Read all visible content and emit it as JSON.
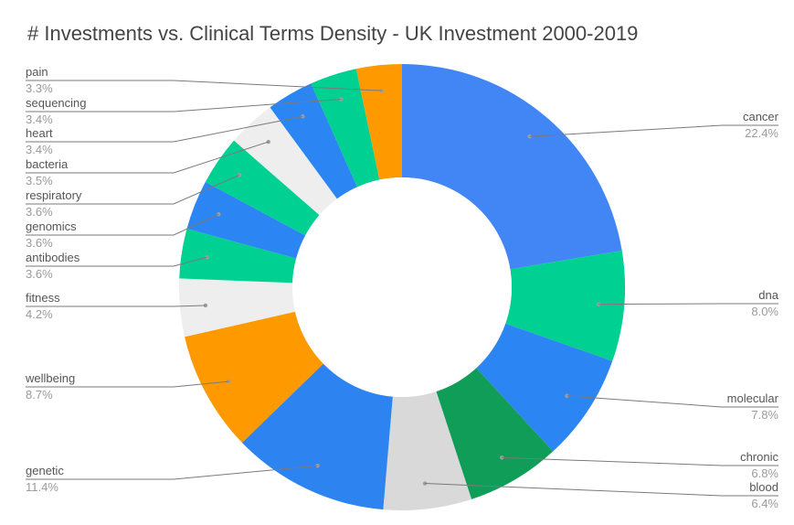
{
  "chart_data": {
    "type": "pie",
    "title": "# Investments vs. Clinical Terms Density - UK Investment 2000-2019",
    "donut": true,
    "start_at": "top",
    "direction": "clockwise",
    "legend": "labeled",
    "slices": [
      {
        "label": "cancer",
        "pct_label": "22.4%",
        "value": 22.4,
        "color": "#4285F4"
      },
      {
        "label": "dna",
        "pct_label": "8.0%",
        "value": 8.0,
        "color": "#00D092"
      },
      {
        "label": "molecular",
        "pct_label": "7.8%",
        "value": 7.8,
        "color": "#2B85F2"
      },
      {
        "label": "chronic",
        "pct_label": "6.8%",
        "value": 6.8,
        "color": "#0F9D58"
      },
      {
        "label": "blood",
        "pct_label": "6.4%",
        "value": 6.4,
        "color": "#D9D9D9"
      },
      {
        "label": "genetic",
        "pct_label": "11.4%",
        "value": 11.4,
        "color": "#2D84F0"
      },
      {
        "label": "wellbeing",
        "pct_label": "8.7%",
        "value": 8.7,
        "color": "#FF9900"
      },
      {
        "label": "fitness",
        "pct_label": "4.2%",
        "value": 4.2,
        "color": "#EEEEEE"
      },
      {
        "label": "antibodies",
        "pct_label": "3.6%",
        "value": 3.6,
        "color": "#00D092"
      },
      {
        "label": "genomics",
        "pct_label": "3.6%",
        "value": 3.6,
        "color": "#2B85F2"
      },
      {
        "label": "respiratory",
        "pct_label": "3.6%",
        "value": 3.6,
        "color": "#00D092"
      },
      {
        "label": "bacteria",
        "pct_label": "3.5%",
        "value": 3.5,
        "color": "#EEEEEE"
      },
      {
        "label": "heart",
        "pct_label": "3.4%",
        "value": 3.4,
        "color": "#2B85F2"
      },
      {
        "label": "sequencing",
        "pct_label": "3.4%",
        "value": 3.4,
        "color": "#00D092"
      },
      {
        "label": "pain",
        "pct_label": "3.3%",
        "value": 3.3,
        "color": "#FF9900"
      }
    ]
  }
}
